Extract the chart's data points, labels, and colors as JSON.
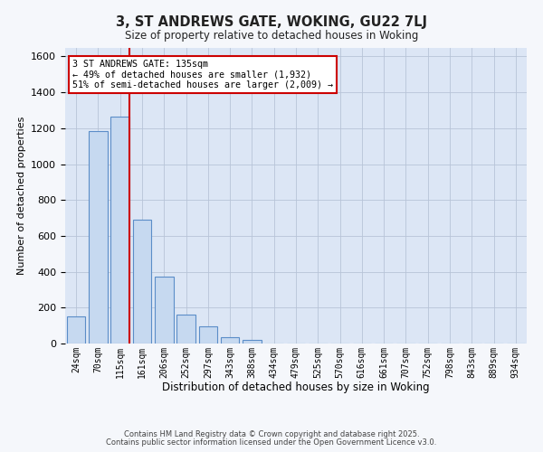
{
  "title": "3, ST ANDREWS GATE, WOKING, GU22 7LJ",
  "subtitle": "Size of property relative to detached houses in Woking",
  "xlabel": "Distribution of detached houses by size in Woking",
  "ylabel": "Number of detached properties",
  "bin_labels": [
    "24sqm",
    "70sqm",
    "115sqm",
    "161sqm",
    "206sqm",
    "252sqm",
    "297sqm",
    "343sqm",
    "388sqm",
    "434sqm",
    "479sqm",
    "525sqm",
    "570sqm",
    "616sqm",
    "661sqm",
    "707sqm",
    "752sqm",
    "798sqm",
    "843sqm",
    "889sqm",
    "934sqm"
  ],
  "bar_heights": [
    150,
    1185,
    1265,
    690,
    375,
    160,
    95,
    33,
    18,
    0,
    0,
    0,
    0,
    0,
    0,
    0,
    0,
    0,
    0,
    0,
    0
  ],
  "bar_color": "#c6d9f0",
  "bar_edge_color": "#5b8dc8",
  "plot_bg_color": "#dce6f5",
  "grid_color": "#b8c4d8",
  "fig_bg_color": "#f5f7fb",
  "property_line_bin_index": 2.43,
  "annotation_title": "3 ST ANDREWS GATE: 135sqm",
  "annotation_line1": "← 49% of detached houses are smaller (1,932)",
  "annotation_line2": "51% of semi-detached houses are larger (2,009) →",
  "annotation_box_color": "#ffffff",
  "annotation_box_edge": "#cc0000",
  "vline_color": "#cc0000",
  "ylim": [
    0,
    1650
  ],
  "yticks": [
    0,
    200,
    400,
    600,
    800,
    1000,
    1200,
    1400,
    1600
  ],
  "footnote1": "Contains HM Land Registry data © Crown copyright and database right 2025.",
  "footnote2": "Contains public sector information licensed under the Open Government Licence v3.0."
}
